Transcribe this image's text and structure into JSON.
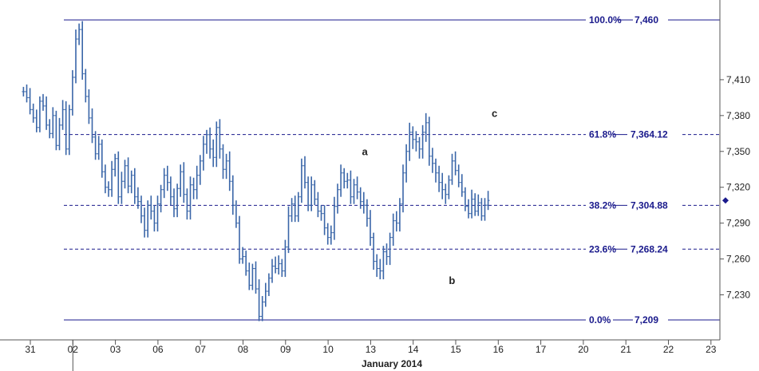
{
  "chart_data": {
    "type": "ohlc",
    "title": "",
    "xlabel": "January 2014",
    "ylabel": "",
    "ylim": [
      7196,
      7474
    ],
    "grid": false,
    "date_ticks": [
      "31",
      "02",
      "03",
      "06",
      "07",
      "08",
      "09",
      "10",
      "13",
      "14",
      "15",
      "16",
      "17",
      "20",
      "21",
      "22",
      "23"
    ],
    "data_day_count": 13,
    "price_ticks": [
      7230,
      7260,
      7290,
      7320,
      7350,
      7380,
      7410
    ],
    "price_tick_labels": [
      "7,230",
      "7,260",
      "7,290",
      "7,320",
      "7,350",
      "7,380",
      "7,410"
    ],
    "fib_levels": [
      {
        "pct_label": "100.0%",
        "value": 7460,
        "value_label": "7,460",
        "style": "solid"
      },
      {
        "pct_label": "61.8%",
        "value": 7364.12,
        "value_label": "7,364.12",
        "style": "dashed"
      },
      {
        "pct_label": "38.2%",
        "value": 7304.88,
        "value_label": "7,304.88",
        "style": "dashed"
      },
      {
        "pct_label": "23.6%",
        "value": 7268.24,
        "value_label": "7,268.24",
        "style": "dashed"
      },
      {
        "pct_label": "0.0%",
        "value": 7209,
        "value_label": "7,209",
        "style": "solid"
      }
    ],
    "wave_labels": [
      {
        "text": "a",
        "day": 8.05,
        "price": 7347
      },
      {
        "text": "b",
        "day": 10.1,
        "price": 7239
      },
      {
        "text": "c",
        "day": 11.1,
        "price": 7379
      }
    ],
    "last_price_marker": 7309,
    "series": [
      {
        "values": [
          7400,
          7395,
          7385,
          7378,
          7370,
          7392,
          7388,
          7372,
          7365,
          7380,
          7355,
          7372,
          7385
        ]
      },
      {
        "values": [
          7352,
          7385,
          7412,
          7444,
          7452,
          7415,
          7396,
          7378,
          7362,
          7348,
          7356,
          7333,
          7320
        ]
      },
      {
        "values": [
          7318,
          7335,
          7344,
          7312,
          7325,
          7338,
          7321,
          7330,
          7312,
          7308,
          7296,
          7284,
          7305
        ]
      },
      {
        "values": [
          7300,
          7290,
          7306,
          7318,
          7330,
          7324,
          7312,
          7302,
          7319,
          7333,
          7314,
          7300,
          7322
        ]
      },
      {
        "values": [
          7318,
          7330,
          7342,
          7356,
          7364,
          7352,
          7345,
          7370,
          7352,
          7335,
          7342,
          7325,
          7305
        ]
      },
      {
        "values": [
          7290,
          7260,
          7262,
          7250,
          7238,
          7252,
          7235,
          7212,
          7224,
          7233,
          7244,
          7254,
          7252
        ]
      },
      {
        "values": [
          7256,
          7250,
          7270,
          7296,
          7306,
          7296,
          7312,
          7338,
          7324,
          7305,
          7322,
          7310,
          7300
        ]
      },
      {
        "values": [
          7298,
          7286,
          7278,
          7282,
          7304,
          7318,
          7332,
          7325,
          7326,
          7312,
          7322,
          7316,
          7308
        ]
      },
      {
        "values": [
          7305,
          7294,
          7278,
          7258,
          7252,
          7250,
          7266,
          7262,
          7278,
          7292,
          7290,
          7306,
          7332
        ]
      },
      {
        "values": [
          7350,
          7366,
          7360,
          7358,
          7352,
          7366,
          7374,
          7346,
          7340,
          7332,
          7324,
          7318,
          7314
        ]
      },
      {
        "values": [
          7326,
          7342,
          7334,
          7324,
          7316,
          7304,
          7298,
          7310,
          7300,
          7307,
          7296,
          7305,
          7309
        ]
      }
    ]
  }
}
